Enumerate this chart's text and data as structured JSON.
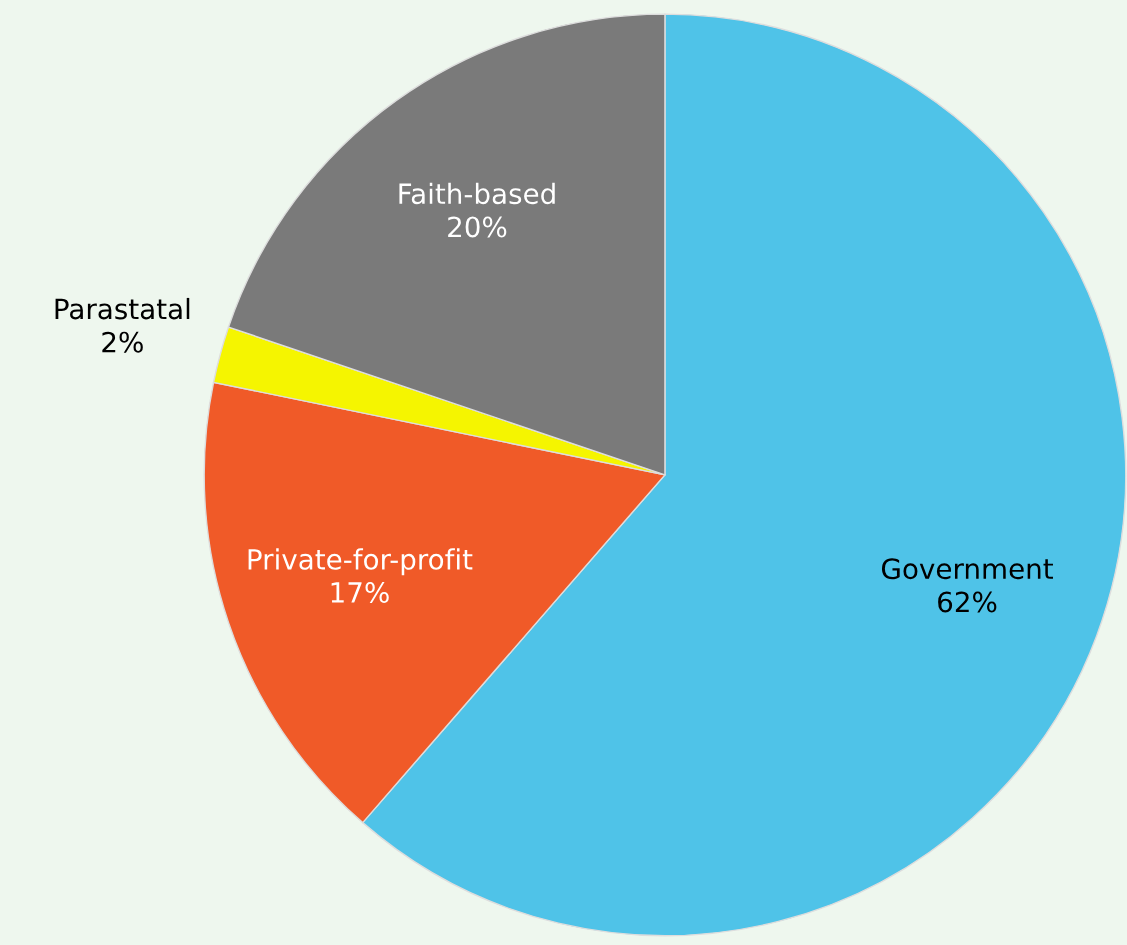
{
  "chart_data": {
    "type": "pie",
    "categories": [
      "Government",
      "Private-for-profit",
      "Parastatal",
      "Faith-based"
    ],
    "values": [
      62,
      17,
      2,
      20
    ],
    "value_labels": [
      "62%",
      "17%",
      "2%",
      "20%"
    ],
    "colors": [
      "#4fc3e8",
      "#f05a28",
      "#f5f500",
      "#7a7a7a"
    ],
    "legend": false
  }
}
